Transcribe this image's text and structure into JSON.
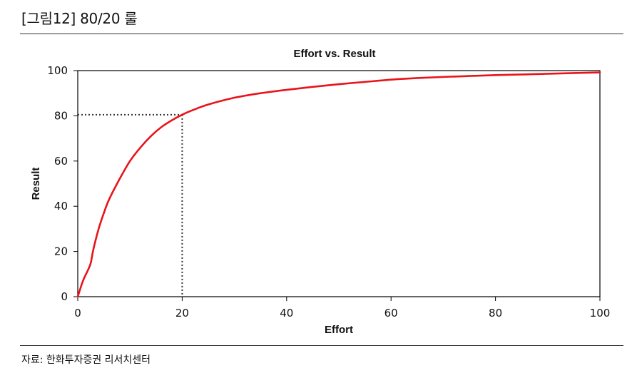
{
  "figure": {
    "title": "[그림12]  80/20 룰",
    "source": "자료: 한화투자증권 리서치센터"
  },
  "chart_data": {
    "type": "line",
    "title": "Effort vs. Result",
    "xlabel": "Effort",
    "ylabel": "Result",
    "xlim": [
      0,
      100
    ],
    "ylim": [
      0,
      100
    ],
    "xticks": [
      0,
      20,
      40,
      60,
      80,
      100
    ],
    "yticks": [
      0,
      20,
      40,
      60,
      80,
      100
    ],
    "grid": false,
    "series": [
      {
        "name": "Result",
        "color": "#e8141b",
        "x": [
          0,
          1,
          2,
          2.5,
          3,
          4,
          5,
          6,
          8,
          10,
          12,
          14,
          16,
          18,
          20,
          22,
          25,
          30,
          35,
          40,
          45,
          50,
          55,
          60,
          65,
          70,
          75,
          80,
          85,
          90,
          95,
          100
        ],
        "y": [
          0,
          7,
          12,
          15,
          21,
          30,
          37,
          43,
          52,
          60,
          66,
          71,
          75,
          78,
          80.5,
          82.5,
          85,
          88,
          90,
          91.5,
          92.8,
          94,
          95,
          96,
          96.7,
          97.2,
          97.6,
          98,
          98.3,
          98.6,
          98.9,
          99.2
        ]
      }
    ],
    "reference_lines": [
      {
        "name": "80/20 guide",
        "x": 20,
        "y": 80.5,
        "color": "#333333",
        "style": "dotted"
      }
    ],
    "colors": {
      "axis": "#000000",
      "line": "#e8141b"
    }
  }
}
